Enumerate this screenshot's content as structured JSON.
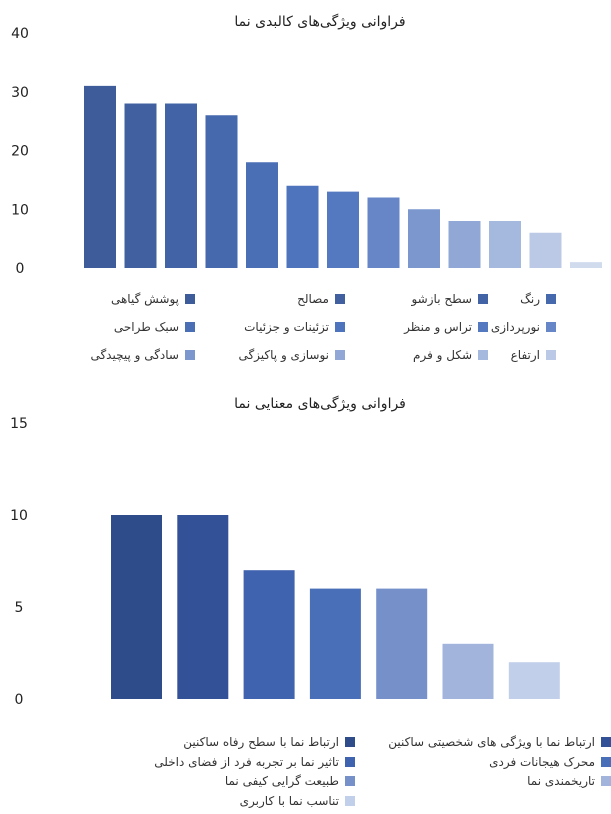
{
  "chart_data": [
    {
      "type": "bar",
      "title": "فراوانی ویژگی‌های کالبدی نما",
      "ylim": [
        0,
        40
      ],
      "yticks": [
        0,
        10,
        20,
        30,
        40
      ],
      "grid": false,
      "legend_position": "bottom",
      "series": [
        {
          "name": "پوشش گیاهی",
          "value": 31,
          "color": "#3e5c9a"
        },
        {
          "name": "مصالح",
          "value": 28,
          "color": "#40609f"
        },
        {
          "name": "سطح بازشو",
          "value": 28,
          "color": "#4264a6"
        },
        {
          "name": "رنگ",
          "value": 26,
          "color": "#4669ad"
        },
        {
          "name": "سبک طراحی",
          "value": 18,
          "color": "#4a6fb5"
        },
        {
          "name": "تزئینات و جزئیات",
          "value": 14,
          "color": "#4d74bc"
        },
        {
          "name": "تراس و منظر",
          "value": 13,
          "color": "#5479c0"
        },
        {
          "name": "نورپردازی",
          "value": 12,
          "color": "#6686c7"
        },
        {
          "name": "سادگی و پیچیدگی",
          "value": 10,
          "color": "#7b97ce"
        },
        {
          "name": "نوسازی و پاکیزگی",
          "value": 8,
          "color": "#91a8d6"
        },
        {
          "name": "شکل و فرم",
          "value": 8,
          "color": "#a5b8de"
        },
        {
          "name": "ارتفاع",
          "value": 6,
          "color": "#bbc9e6"
        },
        {
          "name": "",
          "value": 1,
          "color": "#d0dbee"
        }
      ],
      "legend": [
        {
          "label": "پوشش گیاهی",
          "color": "#3e5c9a"
        },
        {
          "label": "مصالح",
          "color": "#40609f"
        },
        {
          "label": "سطح بازشو",
          "color": "#4264a6"
        },
        {
          "label": "رنگ",
          "color": "#4669ad"
        },
        {
          "label": "سبک طراحی",
          "color": "#4a6fb5"
        },
        {
          "label": "تزئینات و جزئیات",
          "color": "#4d74bc"
        },
        {
          "label": "تراس و منظر",
          "color": "#5479c0"
        },
        {
          "label": "نورپردازی",
          "color": "#6686c7"
        },
        {
          "label": "سادگی و پیچیدگی",
          "color": "#7b97ce"
        },
        {
          "label": "نوسازی و پاکیزگی",
          "color": "#91a8d6"
        },
        {
          "label": "شکل و فرم",
          "color": "#a5b8de"
        },
        {
          "label": "ارتفاع",
          "color": "#bbc9e6"
        }
      ]
    },
    {
      "type": "bar",
      "title": "فراوانی ویژگی‌های معنایی نما",
      "ylim": [
        0,
        15
      ],
      "yticks": [
        0,
        5,
        10,
        15
      ],
      "grid": false,
      "legend_position": "bottom",
      "series": [
        {
          "name": "ارتباط نما با سطح رفاه ساکنین",
          "value": 10,
          "color": "#2e4b8a"
        },
        {
          "name": "ارتباط نما با ویژگی های شخصیتی ساکنین",
          "value": 10,
          "color": "#335196"
        },
        {
          "name": "تاثیر نما بر تجربه فرد از فضای داخلی",
          "value": 7,
          "color": "#3f63ae"
        },
        {
          "name": "محرک هیجانات فردی",
          "value": 6,
          "color": "#4a6fb9"
        },
        {
          "name": "طبیعت گرایی کیفی نما",
          "value": 6,
          "color": "#7690ca"
        },
        {
          "name": "تاریخمندی نما",
          "value": 3,
          "color": "#a2b4dc"
        },
        {
          "name": "تناسب نما با کاربری",
          "value": 2,
          "color": "#c2cfea"
        }
      ],
      "legend": [
        {
          "label": "ارتباط نما با سطح رفاه ساکنین",
          "color": "#2e4b8a"
        },
        {
          "label": "ارتباط نما با ویژگی های شخصیتی ساکنین",
          "color": "#335196"
        },
        {
          "label": "تاثیر نما بر تجربه فرد از فضای داخلی",
          "color": "#3f63ae"
        },
        {
          "label": "محرک هیجانات فردی",
          "color": "#4a6fb9"
        },
        {
          "label": "طبیعت گرایی کیفی نما",
          "color": "#7690ca"
        },
        {
          "label": "تاریخمندی نما",
          "color": "#a2b4dc"
        },
        {
          "label": "تناسب نما با کاربری",
          "color": "#c2cfea"
        }
      ]
    }
  ]
}
